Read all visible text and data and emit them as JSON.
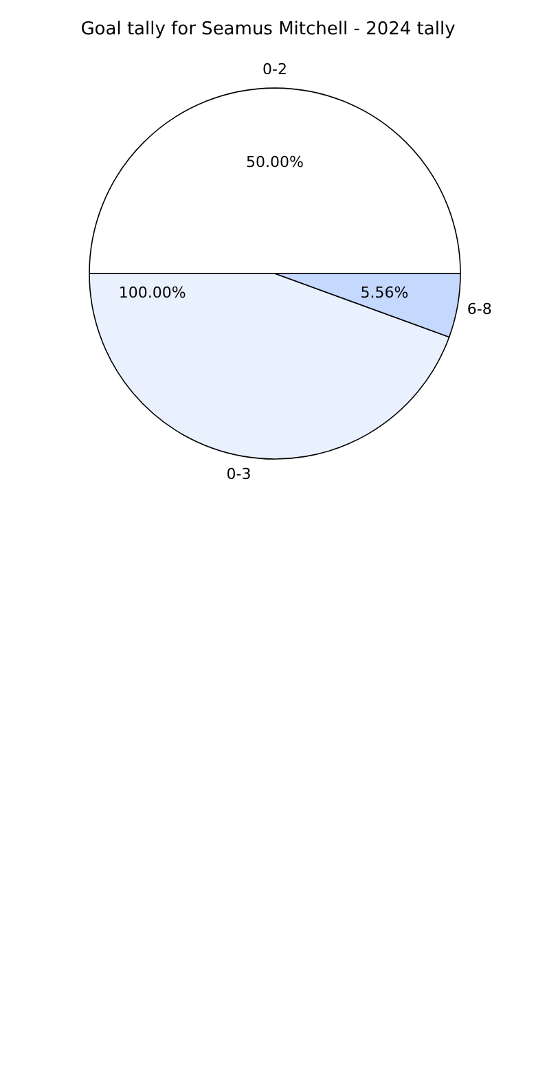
{
  "chart_data": {
    "type": "pie",
    "title": "Goal tally for Seamus Mitchell - 2024 tally",
    "categories": [
      "0-2",
      "0-3",
      "6-8"
    ],
    "values": [
      50,
      44.44,
      5.56
    ],
    "colors": [
      "#ffffff",
      "#eaf1fe",
      "#c5d8fd"
    ],
    "value_labels": [
      "50.00%",
      null,
      "5.56%"
    ],
    "annotations": [
      "100.00%"
    ]
  }
}
